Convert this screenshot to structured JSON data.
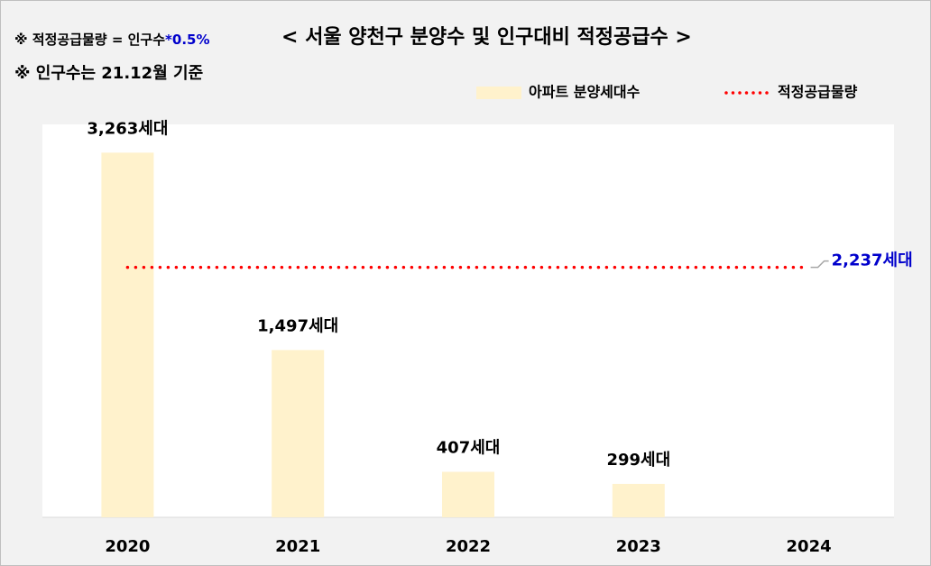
{
  "chart_data": {
    "type": "bar",
    "title": "< 서울 양천구 분양수 및 인구대비 적정공급수 >",
    "annotations": [
      "※ 적정공급물량 = 인구수",
      "*0.5%",
      "※ 인구수는 21.12월 기준"
    ],
    "categories": [
      "2020",
      "2021",
      "2022",
      "2023",
      "2024"
    ],
    "series": [
      {
        "name": "아파트 분양세대수",
        "type": "bar",
        "color": "#fff2cc",
        "values": [
          3263,
          1497,
          407,
          299,
          null
        ],
        "value_labels": [
          "3,263세대",
          "1,497세대",
          "407세대",
          "299세대",
          null
        ]
      },
      {
        "name": "적정공급물량",
        "type": "line",
        "color": "#ff0000",
        "values": [
          2237,
          2237,
          2237,
          2237,
          2237
        ],
        "value_labels": [
          null,
          null,
          null,
          null,
          "2,237세대"
        ]
      }
    ],
    "ylim": [
      0,
      3500
    ]
  }
}
